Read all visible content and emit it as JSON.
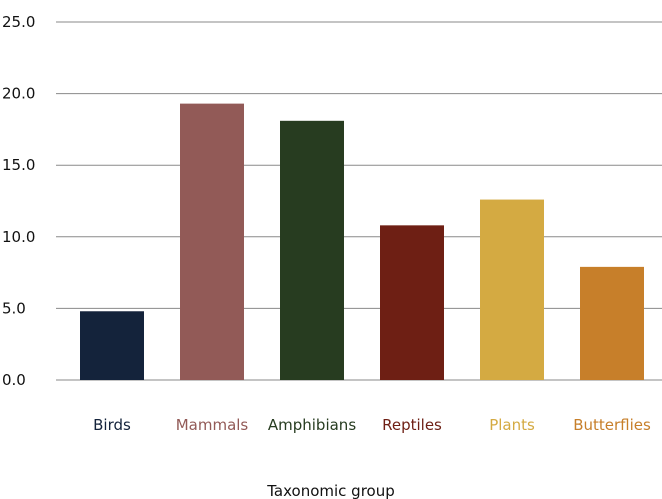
{
  "chart_data": {
    "type": "bar",
    "title": "",
    "xlabel": "Taxonomic group",
    "ylabel": "",
    "ylim": [
      0,
      25
    ],
    "yticks": [
      "0.0",
      "5.0",
      "10.0",
      "15.0",
      "20.0",
      "25.0"
    ],
    "grid": true,
    "legend": "none",
    "categories": [
      "Birds",
      "Mammals",
      "Amphibians",
      "Reptiles",
      "Plants",
      "Butterflies"
    ],
    "values": [
      4.8,
      19.3,
      18.1,
      10.8,
      12.6,
      7.9
    ],
    "colors": [
      "#14233b",
      "#925a57",
      "#273c20",
      "#6e1f14",
      "#d4aa42",
      "#c77f2a"
    ]
  }
}
